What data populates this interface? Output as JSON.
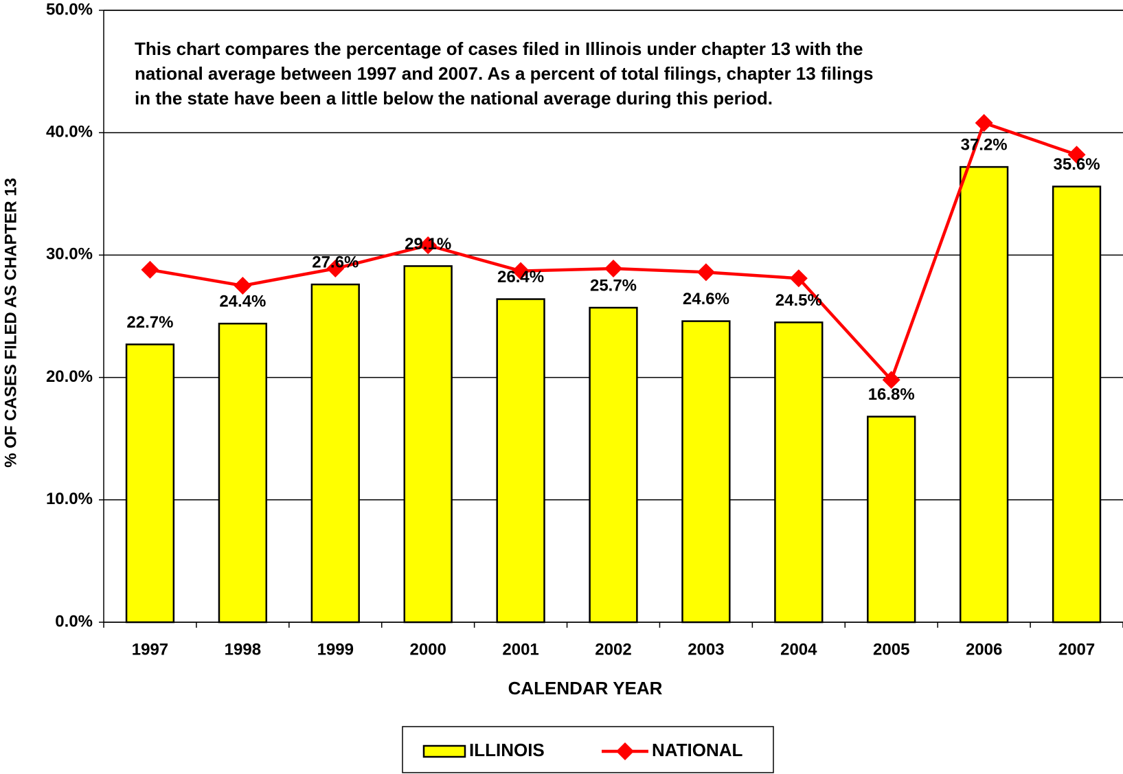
{
  "chart_data": {
    "type": "bar",
    "annotation": [
      "This chart compares the percentage of cases filed in Illinois under chapter 13 with the",
      "national average between 1997 and 2007.  As a percent of total filings, chapter 13 filings",
      "in the state have been a little  below the national average during this period."
    ],
    "x_label": "CALENDAR YEAR",
    "y_label": "% OF CASES FILED AS CHAPTER 13",
    "categories": [
      "1997",
      "1998",
      "1999",
      "2000",
      "2001",
      "2002",
      "2003",
      "2004",
      "2005",
      "2006",
      "2007"
    ],
    "series": [
      {
        "name": "ILLINOIS",
        "type": "bar",
        "color": "#ffff00",
        "values": [
          22.7,
          24.4,
          27.6,
          29.1,
          26.4,
          25.7,
          24.6,
          24.5,
          16.8,
          37.2,
          35.6
        ],
        "value_labels": [
          "22.7%",
          "24.4%",
          "27.6%",
          "29.1%",
          "26.4%",
          "25.7%",
          "24.6%",
          "24.5%",
          "16.8%",
          "37.2%",
          "35.6%"
        ]
      },
      {
        "name": "NATIONAL",
        "type": "line",
        "color": "#ff0000",
        "values": [
          28.8,
          27.5,
          28.9,
          30.8,
          28.7,
          28.9,
          28.6,
          28.1,
          19.8,
          40.8,
          38.2
        ]
      }
    ],
    "ylim": [
      0,
      50
    ],
    "yticks": [
      {
        "value": 0,
        "label": "0.0%"
      },
      {
        "value": 10,
        "label": "10.0%"
      },
      {
        "value": 20,
        "label": "20.0%"
      },
      {
        "value": 30,
        "label": "30.0%"
      },
      {
        "value": 40,
        "label": "40.0%"
      },
      {
        "value": 50,
        "label": "50.0%"
      }
    ],
    "grid": true,
    "legend": "bottom"
  }
}
